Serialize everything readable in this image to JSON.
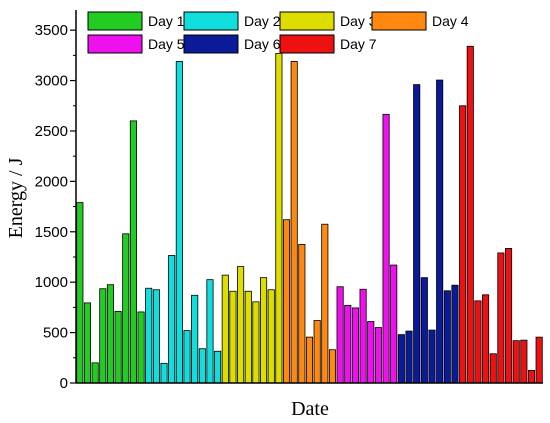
{
  "chart_data": {
    "type": "bar",
    "title": "",
    "xlabel": "Date",
    "ylabel": "Energy / J",
    "ylim": [
      0,
      3700
    ],
    "yticks": [
      0,
      500,
      1000,
      1500,
      2000,
      2500,
      3000,
      3500
    ],
    "grid": false,
    "legend_position": "top",
    "series": [
      {
        "name": "Day 1",
        "color": "#22cc22",
        "values": [
          1790,
          795,
          200,
          935,
          975,
          710,
          1480,
          2600,
          705
        ]
      },
      {
        "name": "Day 2",
        "color": "#11dddd",
        "values": [
          940,
          925,
          195,
          1265,
          3190,
          520,
          870,
          340,
          1025,
          315
        ]
      },
      {
        "name": "Day 3",
        "color": "#dddd00",
        "values": [
          1070,
          910,
          1155,
          910,
          805,
          1045,
          925,
          3270
        ]
      },
      {
        "name": "Day 4",
        "color": "#ff8811",
        "values": [
          1620,
          3190,
          1375,
          455,
          620,
          1575,
          330
        ]
      },
      {
        "name": "Day 5",
        "color": "#ee11ee",
        "values": [
          955,
          770,
          745,
          930,
          610,
          550,
          2665,
          1170
        ]
      },
      {
        "name": "Day 6",
        "color": "#0a1a99",
        "values": [
          480,
          515,
          2960,
          1045,
          525,
          3005,
          915,
          970
        ]
      },
      {
        "name": "Day 7",
        "color": "#ee1111",
        "values": [
          2750,
          3340,
          815,
          875,
          290,
          1290,
          1335,
          420,
          425,
          125,
          455
        ]
      }
    ]
  }
}
